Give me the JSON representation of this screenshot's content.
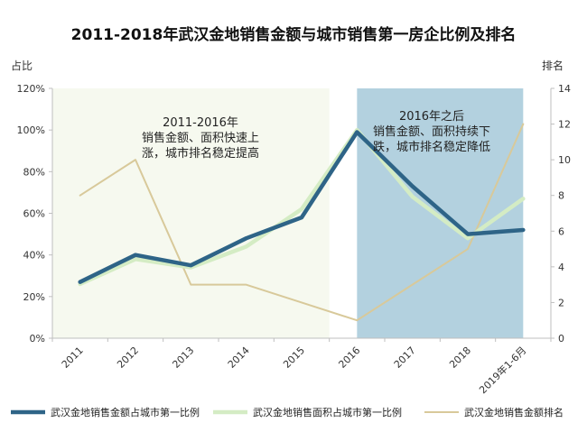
{
  "chart_data": {
    "type": "line",
    "title": "2011-2018年武汉金地销售金额与城市销售第一房企比例及排名",
    "ylabel_left": "占比",
    "ylabel_right": "排名",
    "categories": [
      "2011",
      "2012",
      "2013",
      "2014",
      "2015",
      "2016",
      "2017",
      "2018",
      "2019年1-6月"
    ],
    "y_left_ticks": [
      "0%",
      "20%",
      "40%",
      "60%",
      "80%",
      "100%",
      "120%"
    ],
    "y_right_ticks": [
      "0",
      "2",
      "4",
      "6",
      "8",
      "10",
      "12",
      "14"
    ],
    "ylim_left": [
      0,
      1.2
    ],
    "ylim_right": [
      0,
      14
    ],
    "series": [
      {
        "name": "武汉金地销售金额占城市第一比例",
        "axis": "left",
        "color": "#2e6487",
        "values": [
          0.27,
          0.4,
          0.35,
          0.48,
          0.58,
          0.99,
          0.73,
          0.5,
          0.52
        ]
      },
      {
        "name": "武汉金地销售面积占城市第一比例",
        "axis": "left",
        "color": "#d4ecc4",
        "values": [
          0.26,
          0.38,
          0.34,
          0.44,
          0.62,
          1.0,
          0.68,
          0.48,
          0.67
        ]
      },
      {
        "name": "武汉金地销售金额排名",
        "axis": "right",
        "color": "#d8c99a",
        "values": [
          8,
          10,
          3,
          3,
          2,
          1,
          3,
          5,
          12
        ]
      }
    ],
    "regions": [
      {
        "from": 0,
        "to": 5,
        "fill": "#f6f9ef"
      },
      {
        "from": 5.5,
        "to": 8.5,
        "fill": "#b3d1df"
      }
    ],
    "annotations": [
      {
        "lines": [
          "2011-2016年",
          "销售金额、面积快速上",
          "涨，城市排名稳定提高"
        ]
      },
      {
        "lines": [
          "2016年之后",
          "销售金额、面积持续下",
          "跌，城市排名稳定降低"
        ]
      }
    ],
    "grid": false,
    "legend": "bottom"
  }
}
